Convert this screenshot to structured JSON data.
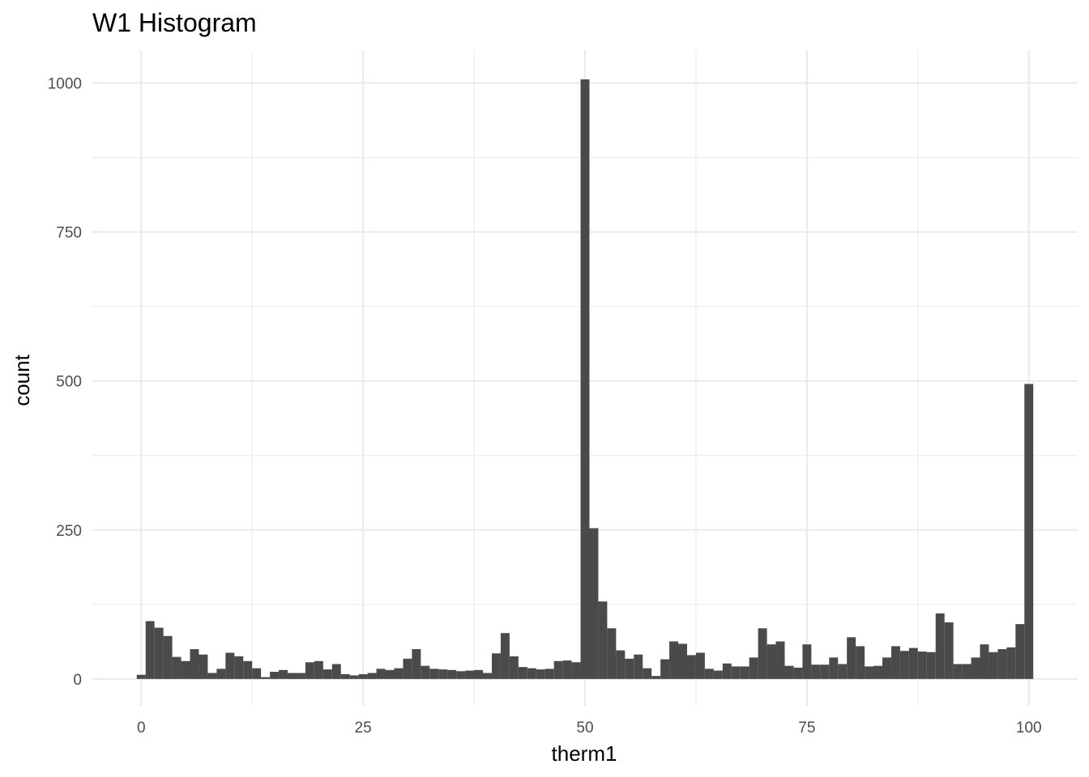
{
  "chart_data": {
    "type": "bar",
    "title": "W1 Histogram",
    "xlabel": "therm1",
    "ylabel": "count",
    "x_ticks": [
      0,
      25,
      50,
      75,
      100
    ],
    "y_ticks": [
      0,
      250,
      500,
      750,
      1000
    ],
    "xlim": [
      -5.5,
      105.5
    ],
    "ylim": [
      -45,
      1055
    ],
    "grid": true,
    "bar_color": "#4a4a4a",
    "bin_width": 1,
    "bins": {
      "x": [
        0,
        1,
        2,
        3,
        4,
        5,
        6,
        7,
        8,
        9,
        10,
        11,
        12,
        13,
        14,
        15,
        16,
        17,
        18,
        19,
        20,
        21,
        22,
        23,
        24,
        25,
        26,
        27,
        28,
        29,
        30,
        31,
        32,
        33,
        34,
        35,
        36,
        37,
        38,
        39,
        40,
        41,
        42,
        43,
        44,
        45,
        46,
        47,
        48,
        49,
        50,
        51,
        52,
        53,
        54,
        55,
        56,
        57,
        58,
        59,
        60,
        61,
        62,
        63,
        64,
        65,
        66,
        67,
        68,
        69,
        70,
        71,
        72,
        73,
        74,
        75,
        76,
        77,
        78,
        79,
        80,
        81,
        82,
        83,
        84,
        85,
        86,
        87,
        88,
        89,
        90,
        91,
        92,
        93,
        94,
        95,
        96,
        97,
        98,
        99,
        100
      ],
      "counts": [
        7,
        97,
        86,
        72,
        37,
        30,
        50,
        41,
        10,
        17,
        44,
        38,
        30,
        18,
        3,
        12,
        15,
        10,
        10,
        28,
        30,
        16,
        25,
        8,
        6,
        8,
        10,
        17,
        15,
        18,
        34,
        50,
        22,
        17,
        16,
        15,
        13,
        14,
        15,
        10,
        43,
        77,
        38,
        20,
        18,
        16,
        17,
        30,
        31,
        28,
        1006,
        253,
        130,
        85,
        48,
        34,
        41,
        18,
        5,
        33,
        63,
        59,
        40,
        44,
        17,
        14,
        26,
        21,
        21,
        36,
        85,
        58,
        63,
        22,
        19,
        58,
        24,
        24,
        36,
        25,
        70,
        55,
        21,
        22,
        36,
        55,
        47,
        52,
        46,
        45,
        110,
        95,
        25,
        25,
        36,
        58,
        45,
        50,
        53,
        92,
        495
      ]
    }
  }
}
